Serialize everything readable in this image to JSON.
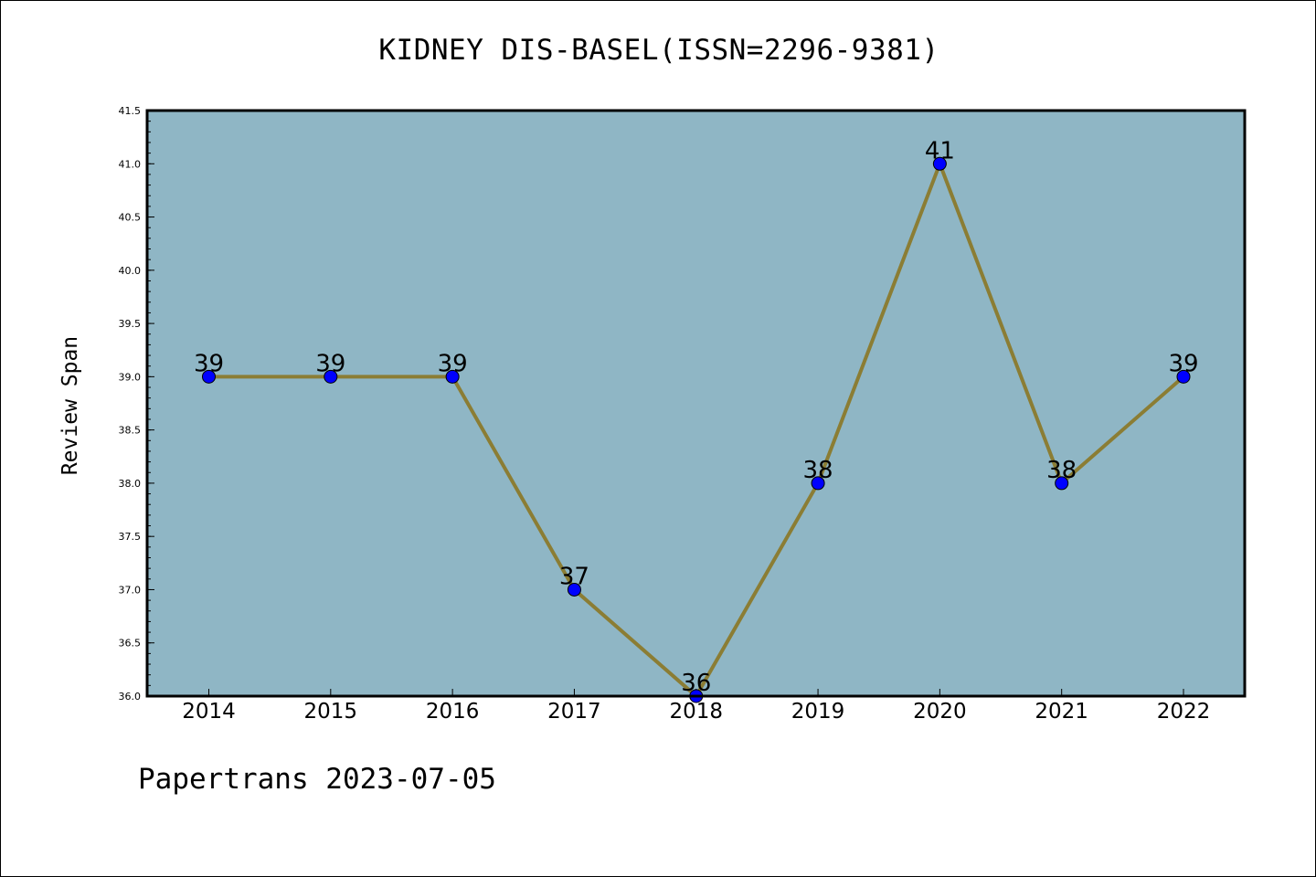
{
  "chart_data": {
    "type": "line",
    "title": "KIDNEY DIS-BASEL(ISSN=2296-9381)",
    "xlabel": "",
    "ylabel": "Review Span",
    "categories": [
      "2014",
      "2015",
      "2016",
      "2017",
      "2018",
      "2019",
      "2020",
      "2021",
      "2022"
    ],
    "values": [
      39,
      39,
      39,
      37,
      36,
      38,
      41,
      38,
      39
    ],
    "data_labels": [
      "39",
      "39",
      "39",
      "37",
      "36",
      "38",
      "41",
      "38",
      "39"
    ],
    "ylim": [
      36.0,
      41.5
    ],
    "yticks": [
      "36.0",
      "36.5",
      "37.0",
      "37.5",
      "38.0",
      "38.5",
      "39.0",
      "39.5",
      "40.0",
      "40.5",
      "41.0",
      "41.5"
    ],
    "grid": false,
    "legend": "none",
    "colors": {
      "plot_background": "#8fb6c5",
      "line": "#8b7d34",
      "marker": "#0000ff",
      "marker_edge": "#000000"
    }
  },
  "footer": {
    "note": "Papertrans 2023-07-05"
  }
}
